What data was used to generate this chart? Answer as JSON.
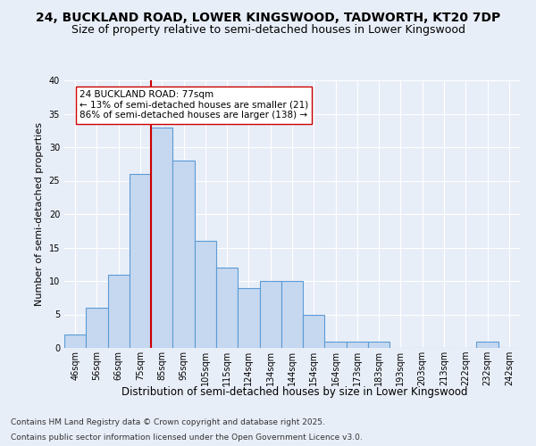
{
  "title1": "24, BUCKLAND ROAD, LOWER KINGSWOOD, TADWORTH, KT20 7DP",
  "title2": "Size of property relative to semi-detached houses in Lower Kingswood",
  "xlabel": "Distribution of semi-detached houses by size in Lower Kingswood",
  "ylabel": "Number of semi-detached properties",
  "bins": [
    "46sqm",
    "56sqm",
    "66sqm",
    "75sqm",
    "85sqm",
    "95sqm",
    "105sqm",
    "115sqm",
    "124sqm",
    "134sqm",
    "144sqm",
    "154sqm",
    "164sqm",
    "173sqm",
    "183sqm",
    "193sqm",
    "203sqm",
    "213sqm",
    "222sqm",
    "232sqm",
    "242sqm"
  ],
  "values": [
    2,
    6,
    11,
    26,
    33,
    28,
    16,
    12,
    9,
    10,
    10,
    5,
    1,
    1,
    1,
    0,
    0,
    0,
    0,
    1,
    0
  ],
  "bar_color": "#c5d8f0",
  "bar_edge_color": "#5b9bd5",
  "red_line_x": 3.5,
  "annotation_text": "24 BUCKLAND ROAD: 77sqm\n← 13% of semi-detached houses are smaller (21)\n86% of semi-detached houses are larger (138) →",
  "annotation_box_color": "#ffffff",
  "annotation_box_edge": "#cc0000",
  "red_line_color": "#cc0000",
  "ylim": [
    0,
    40
  ],
  "yticks": [
    0,
    5,
    10,
    15,
    20,
    25,
    30,
    35,
    40
  ],
  "footer1": "Contains HM Land Registry data © Crown copyright and database right 2025.",
  "footer2": "Contains public sector information licensed under the Open Government Licence v3.0.",
  "bg_color": "#e8eef8",
  "plot_bg_color": "#e8eef8",
  "title1_fontsize": 10,
  "title2_fontsize": 9,
  "xlabel_fontsize": 8.5,
  "ylabel_fontsize": 8,
  "tick_fontsize": 7,
  "annotation_fontsize": 7.5,
  "footer_fontsize": 6.5
}
